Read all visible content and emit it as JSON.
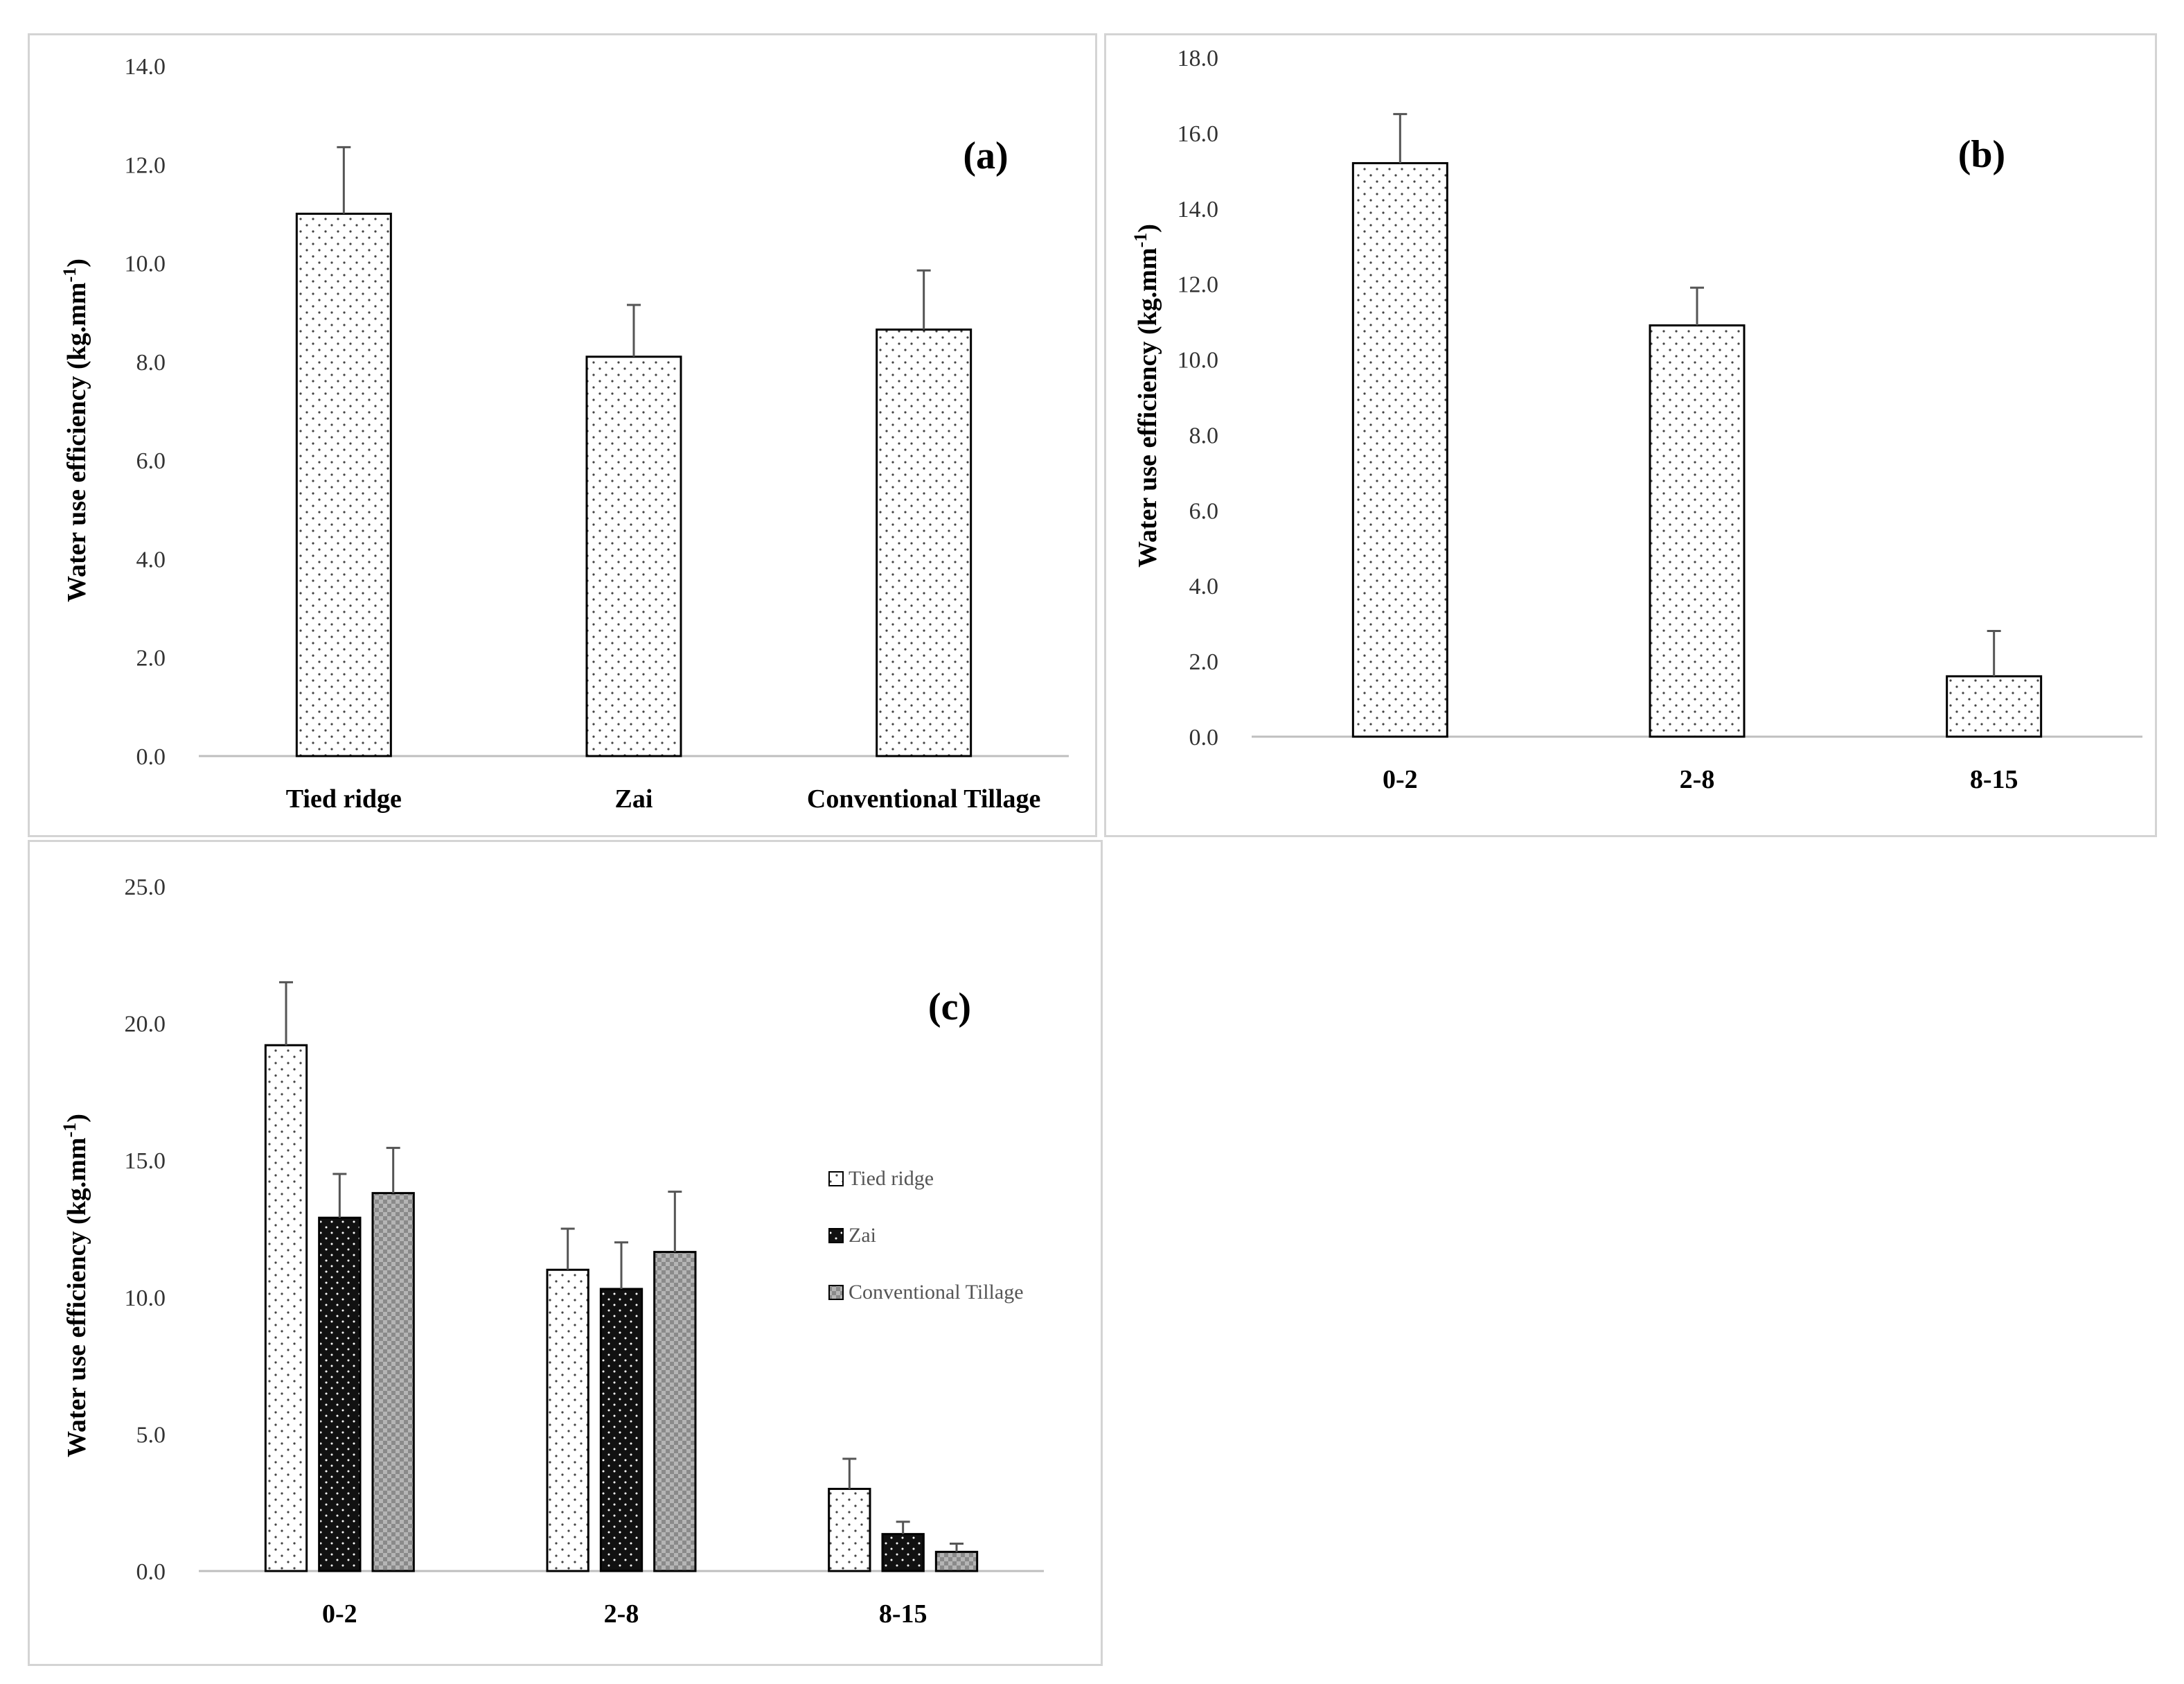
{
  "chart_data": [
    {
      "id": "a",
      "type": "bar",
      "panel_label": "(a)",
      "ylabel": "Water use efficiency (kg.mm",
      "ylabel_superscript": "-1",
      "ylabel_close": ")",
      "ylim": [
        0,
        14
      ],
      "yticks": [
        "0.0",
        "2.0",
        "4.0",
        "6.0",
        "8.0",
        "10.0",
        "12.0",
        "14.0"
      ],
      "categories": [
        "Tied ridge",
        "Zai",
        "Conventional Tillage"
      ],
      "series": [
        {
          "values": [
            11.0,
            8.1,
            8.65
          ],
          "errors": [
            1.35,
            1.05,
            1.2
          ]
        }
      ],
      "grid": false
    },
    {
      "id": "b",
      "type": "bar",
      "panel_label": "(b)",
      "ylabel": "Water use efficiency (kg.mm",
      "ylabel_superscript": "-1",
      "ylabel_close": ")",
      "ylim": [
        0,
        18
      ],
      "yticks": [
        "0.0",
        "2.0",
        "4.0",
        "6.0",
        "8.0",
        "10.0",
        "12.0",
        "14.0",
        "16.0",
        "18.0"
      ],
      "categories": [
        "0-2",
        "2-8",
        "8-15"
      ],
      "series": [
        {
          "values": [
            15.2,
            10.9,
            1.6
          ],
          "errors": [
            1.3,
            1.0,
            1.2
          ]
        }
      ],
      "grid": false
    },
    {
      "id": "c",
      "type": "bar",
      "panel_label": "(c)",
      "ylabel": "Water use efficiency (kg.mm",
      "ylabel_superscript": "-1",
      "ylabel_close": ")",
      "ylim": [
        0,
        25
      ],
      "yticks": [
        "0.0",
        "5.0",
        "10.0",
        "15.0",
        "20.0",
        "25.0"
      ],
      "categories": [
        "0-2",
        "2-8",
        "8-15"
      ],
      "series": [
        {
          "name": "Tied ridge",
          "values": [
            19.2,
            11.0,
            3.0
          ],
          "errors": [
            2.3,
            1.5,
            1.1
          ]
        },
        {
          "name": "Zai",
          "values": [
            12.9,
            10.3,
            1.35
          ],
          "errors": [
            1.6,
            1.7,
            0.45
          ]
        },
        {
          "name": "Conventional Tillage",
          "values": [
            13.8,
            11.65,
            0.7
          ],
          "errors": [
            1.65,
            2.2,
            0.3
          ]
        }
      ],
      "legend": "right",
      "grid": false
    }
  ]
}
